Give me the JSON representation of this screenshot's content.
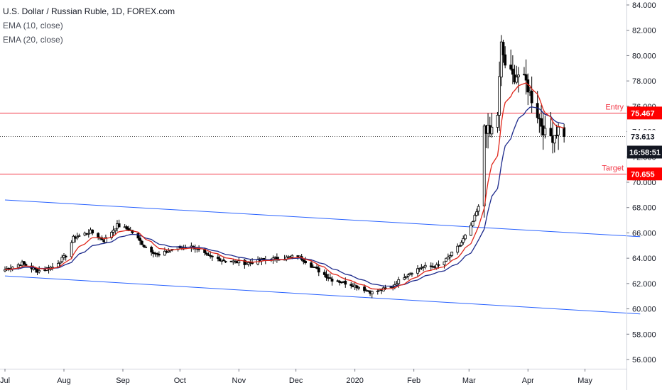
{
  "chart_data": {
    "type": "candlestick",
    "title": "U.S. Dollar / Russian Ruble, 1D, FOREX.com",
    "indicators": [
      "EMA (10, close)",
      "EMA (20, close)"
    ],
    "colors": {
      "up": "#ffffff",
      "down": "#000000",
      "wick": "#000000",
      "ema10": "#e0271b",
      "ema20": "#1d2a8c",
      "channel": "#2962ff",
      "level": "#f23645",
      "label_bg": "#ff0000",
      "price_line": "#000000"
    },
    "y_axis": {
      "range": [
        55.3,
        84.2
      ],
      "ticks": [
        "84.000",
        "82.000",
        "80.000",
        "78.000",
        "76.000",
        "74.000",
        "72.000",
        "70.000",
        "68.000",
        "66.000",
        "64.000",
        "62.000",
        "60.000",
        "58.000",
        "56.000"
      ]
    },
    "x_axis": {
      "ticks": [
        "Jul",
        "Aug",
        "Sep",
        "Oct",
        "Nov",
        "Dec",
        "2020",
        "Feb",
        "Mar",
        "Apr",
        "May"
      ]
    },
    "levels": [
      {
        "name": "Entry",
        "value": 75.467,
        "label": "75.467"
      },
      {
        "name": "Target",
        "value": 70.655,
        "label": "70.655"
      }
    ],
    "current_price": {
      "value": 73.613,
      "label": "73.613",
      "countdown": "16:58:51"
    },
    "channel": {
      "upper": [
        {
          "date": "2019-07-01",
          "value": 68.6
        },
        {
          "date": "2020-05-30",
          "value": 65.7
        }
      ],
      "lower": [
        {
          "date": "2019-07-01",
          "value": 62.6
        },
        {
          "date": "2020-05-30",
          "value": 59.6
        }
      ]
    },
    "ohlc_keyframes": [
      {
        "date": "2019-07-01",
        "close": 63.1
      },
      {
        "date": "2019-07-10",
        "close": 63.6
      },
      {
        "date": "2019-07-18",
        "close": 63.0
      },
      {
        "date": "2019-07-26",
        "close": 63.3
      },
      {
        "date": "2019-08-02",
        "close": 64.2
      },
      {
        "date": "2019-08-06",
        "close": 65.6
      },
      {
        "date": "2019-08-15",
        "close": 66.1
      },
      {
        "date": "2019-08-22",
        "close": 65.4
      },
      {
        "date": "2019-08-29",
        "close": 66.6
      },
      {
        "date": "2019-09-05",
        "close": 66.2
      },
      {
        "date": "2019-09-12",
        "close": 65.0
      },
      {
        "date": "2019-09-20",
        "close": 64.2
      },
      {
        "date": "2019-09-28",
        "close": 64.8
      },
      {
        "date": "2019-10-08",
        "close": 64.9
      },
      {
        "date": "2019-10-15",
        "close": 64.2
      },
      {
        "date": "2019-10-25",
        "close": 63.8
      },
      {
        "date": "2019-11-05",
        "close": 63.6
      },
      {
        "date": "2019-11-15",
        "close": 63.9
      },
      {
        "date": "2019-11-25",
        "close": 64.0
      },
      {
        "date": "2019-12-02",
        "close": 64.2
      },
      {
        "date": "2019-12-10",
        "close": 63.3
      },
      {
        "date": "2019-12-20",
        "close": 62.3
      },
      {
        "date": "2019-12-31",
        "close": 61.9
      },
      {
        "date": "2020-01-10",
        "close": 61.3
      },
      {
        "date": "2020-01-20",
        "close": 61.7
      },
      {
        "date": "2020-01-28",
        "close": 62.7
      },
      {
        "date": "2020-02-05",
        "close": 63.3
      },
      {
        "date": "2020-02-15",
        "close": 63.4
      },
      {
        "date": "2020-02-25",
        "close": 65.0
      },
      {
        "date": "2020-03-02",
        "close": 66.5
      },
      {
        "date": "2020-03-06",
        "close": 68.0
      },
      {
        "date": "2020-03-09",
        "close": 74.5
      },
      {
        "date": "2020-03-12",
        "close": 73.8
      },
      {
        "date": "2020-03-16",
        "close": 75.4
      },
      {
        "date": "2020-03-18",
        "close": 80.8
      },
      {
        "date": "2020-03-20",
        "close": 79.3
      },
      {
        "date": "2020-03-24",
        "close": 78.3
      },
      {
        "date": "2020-03-27",
        "close": 78.5
      },
      {
        "date": "2020-03-31",
        "close": 77.9
      },
      {
        "date": "2020-04-03",
        "close": 76.6
      },
      {
        "date": "2020-04-07",
        "close": 75.0
      },
      {
        "date": "2020-04-10",
        "close": 73.8
      },
      {
        "date": "2020-04-14",
        "close": 73.6
      },
      {
        "date": "2020-04-17",
        "close": 74.2
      },
      {
        "date": "2020-04-20",
        "close": 73.6
      }
    ]
  }
}
